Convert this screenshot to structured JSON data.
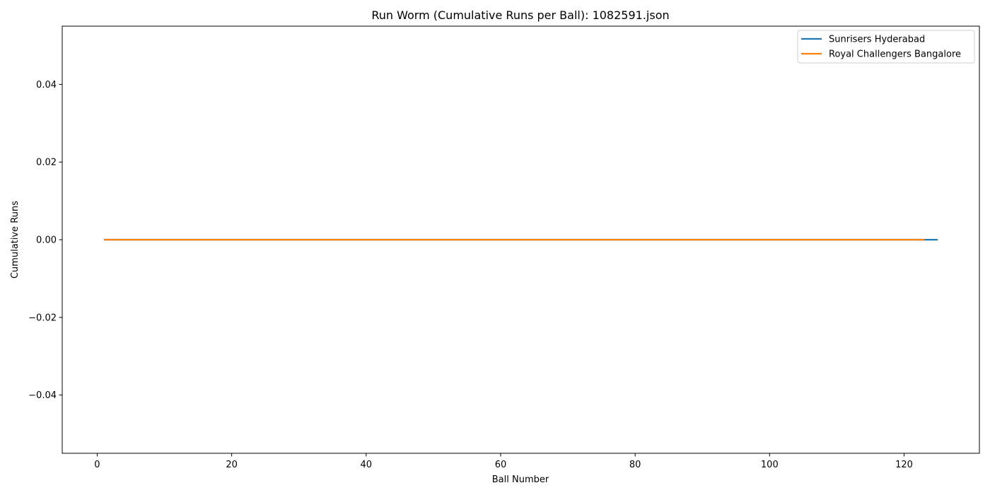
{
  "chart_data": {
    "type": "line",
    "title": "Run Worm (Cumulative Runs per Ball): 1082591.json",
    "xlabel": "Ball Number",
    "ylabel": "Cumulative Runs",
    "xlim": [
      -5.2,
      131.2
    ],
    "ylim": [
      -0.055,
      0.055
    ],
    "xticks": [
      0,
      20,
      40,
      60,
      80,
      100,
      120
    ],
    "xtick_labels": [
      "0",
      "20",
      "40",
      "60",
      "80",
      "100",
      "120"
    ],
    "yticks": [
      -0.04,
      -0.02,
      0.0,
      0.02,
      0.04
    ],
    "ytick_labels": [
      "−0.04",
      "−0.02",
      "0.00",
      "0.02",
      "0.04"
    ],
    "grid": false,
    "legend_position": "top-right",
    "series": [
      {
        "name": "Sunrisers Hyderabad",
        "color": "#1f77b4",
        "x": [
          1,
          125
        ],
        "y": [
          0,
          0
        ]
      },
      {
        "name": "Royal Challengers Bangalore",
        "color": "#ff7f0e",
        "x": [
          1,
          123
        ],
        "y": [
          0,
          0
        ]
      }
    ]
  }
}
